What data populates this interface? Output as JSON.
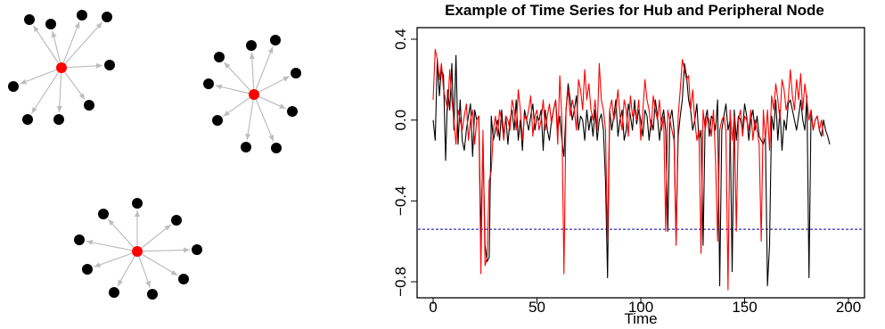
{
  "chart_data": [
    {
      "type": "network",
      "panel": "left",
      "hub_color": "#ff0000",
      "node_color": "#000000",
      "edge_color": "#bdbdbd",
      "graphs": [
        {
          "hub": "hub",
          "peripheral_count": 9
        },
        {
          "hub": "hub",
          "peripheral_count": 9
        },
        {
          "hub": "hub",
          "peripheral_count": 9
        }
      ]
    },
    {
      "type": "line",
      "title": "Example of Time Series for Hub and Peripheral Node",
      "xlabel": "Time",
      "ylabel": "",
      "xlim": [
        0,
        200
      ],
      "ylim": [
        -0.84,
        0.42
      ],
      "xticks": [
        0,
        50,
        100,
        150,
        200
      ],
      "yticks": [
        -0.8,
        -0.4,
        0.0,
        0.4
      ],
      "ytick_labels": [
        "−0.8",
        "−0.4",
        "0.0",
        "0.4"
      ],
      "xtick_labels": [
        "0",
        "50",
        "100",
        "150",
        "200"
      ],
      "hline": {
        "y": -0.54,
        "color": "#0000aa",
        "style": "dashed"
      },
      "series": [
        {
          "color": "#000000",
          "values": [
            0.0,
            -0.1,
            0.3,
            0.12,
            0.25,
            0.22,
            -0.2,
            0.15,
            0.05,
            0.28,
            -0.05,
            0.32,
            -0.12,
            0.1,
            -0.1,
            -0.15,
            -0.05,
            0.02,
            0.08,
            -0.18,
            0.05,
            0.0,
            0.02,
            -0.58,
            -0.1,
            -0.62,
            -0.7,
            -0.68,
            0.02,
            -0.1,
            -0.05,
            0.0,
            -0.1,
            0.05,
            -0.08,
            0.02,
            -0.12,
            0.0,
            0.05,
            -0.05,
            0.1,
            -0.1,
            0.0,
            -0.15,
            0.05,
            0.0,
            -0.05,
            0.02,
            0.08,
            -0.05,
            0.02,
            0.0,
            0.05,
            -0.15,
            0.05,
            -0.05,
            -0.1,
            0.0,
            0.05,
            0.1,
            -0.05,
            0.02,
            -0.1,
            -0.18,
            0.05,
            0.18,
            0.1,
            0.0,
            0.05,
            0.12,
            -0.05,
            0.02,
            0.0,
            -0.1,
            0.05,
            -0.05,
            0.02,
            -0.08,
            0.05,
            -0.1,
            0.0,
            0.03,
            -0.05,
            -0.3,
            -0.78,
            0.05,
            -0.05,
            0.02,
            0.1,
            -0.08,
            0.0,
            0.05,
            -0.1,
            -0.05,
            0.08,
            0.02,
            -0.05,
            0.1,
            -0.02,
            0.05,
            0.0,
            -0.08,
            0.05,
            0.02,
            -0.1,
            0.0,
            -0.05,
            0.1,
            0.02,
            -0.1,
            0.0,
            0.05,
            -0.05,
            -0.55,
            0.0,
            0.05,
            -0.05,
            -0.6,
            -0.08,
            0.02,
            0.1,
            0.28,
            0.22,
            0.1,
            0.05,
            -0.05,
            0.0,
            0.08,
            -0.1,
            -0.05,
            -0.62,
            0.0,
            0.05,
            -0.08,
            0.02,
            0.0,
            -0.05,
            0.1,
            -0.82,
            -0.05,
            0.02,
            0.08,
            -0.05,
            0.0,
            -0.75,
            0.05,
            -0.1,
            0.02,
            0.0,
            -0.05,
            0.08,
            0.02,
            -0.1,
            0.0,
            0.05,
            -0.05,
            0.02,
            -0.08,
            -0.1,
            -0.12,
            -0.08,
            -0.82,
            -0.62,
            0.02,
            -0.05,
            0.1,
            -0.1,
            0.05,
            -0.15,
            0.0,
            -0.05,
            0.08,
            0.1,
            0.05,
            0.0,
            -0.05,
            0.02,
            0.1,
            0.0,
            -0.05,
            0.12,
            -0.78,
            0.05,
            -0.05,
            0.0,
            0.02,
            -0.05,
            -0.08,
            0.0,
            -0.05,
            -0.08,
            -0.12
          ]
        },
        {
          "color": "#ff0000",
          "values": [
            0.1,
            0.35,
            0.3,
            0.2,
            0.28,
            0.15,
            0.1,
            0.05,
            0.25,
            0.1,
            0.0,
            -0.12,
            0.05,
            0.0,
            -0.05,
            0.02,
            0.08,
            -0.1,
            0.0,
            0.05,
            -0.12,
            0.0,
            0.02,
            -0.76,
            -0.05,
            -0.72,
            -0.68,
            -0.3,
            -0.25,
            -0.05,
            0.02,
            -0.08,
            0.05,
            0.0,
            -0.1,
            0.02,
            0.0,
            -0.05,
            0.1,
            0.05,
            -0.05,
            0.15,
            0.05,
            -0.1,
            0.02,
            0.0,
            0.05,
            0.12,
            -0.08,
            0.02,
            0.05,
            -0.05,
            0.0,
            0.1,
            -0.05,
            0.02,
            0.08,
            -0.02,
            0.05,
            0.1,
            -0.12,
            0.22,
            0.0,
            -0.76,
            0.05,
            0.15,
            0.02,
            0.1,
            0.05,
            -0.05,
            0.2,
            0.15,
            0.05,
            0.25,
            0.1,
            0.18,
            0.05,
            0.0,
            0.1,
            -0.05,
            0.28,
            0.1,
            0.05,
            -0.05,
            -0.6,
            0.05,
            0.1,
            0.0,
            0.05,
            0.15,
            0.02,
            -0.05,
            0.1,
            0.05,
            -0.08,
            0.12,
            0.02,
            0.05,
            0.0,
            0.1,
            -0.1,
            0.05,
            0.2,
            0.1,
            0.05,
            -0.05,
            0.12,
            0.05,
            0.0,
            0.1,
            -0.05,
            0.02,
            -0.55,
            0.05,
            0.0,
            -0.05,
            -0.1,
            -0.62,
            0.02,
            0.15,
            0.3,
            0.25,
            0.2,
            0.22,
            0.05,
            0.15,
            0.0,
            -0.1,
            -0.05,
            -0.66,
            0.05,
            -0.05,
            0.02,
            0.0,
            -0.08,
            0.05,
            -0.2,
            -0.6,
            -0.05,
            0.0,
            0.02,
            -0.05,
            -0.84,
            0.05,
            -0.1,
            0.02,
            -0.55,
            0.0,
            0.05,
            -0.08,
            0.02,
            0.0,
            -0.05,
            0.05,
            -0.1,
            0.0,
            -0.05,
            -0.12,
            -0.6,
            0.05,
            -0.1,
            0.05,
            -0.15,
            0.12,
            0.05,
            0.18,
            0.1,
            0.0,
            0.2,
            0.15,
            0.05,
            0.1,
            0.25,
            0.12,
            0.05,
            0.2,
            0.1,
            0.23,
            0.05,
            0.18,
            0.1,
            0.0,
            0.05,
            -0.05,
            0.0,
            0.02,
            -0.05,
            0.0,
            -0.08
          ]
        }
      ]
    }
  ]
}
